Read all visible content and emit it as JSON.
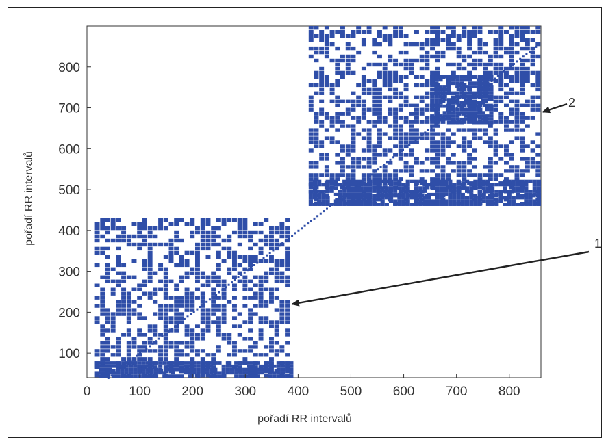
{
  "chart_data": {
    "type": "scatter",
    "title": "",
    "xlabel": "pořadí RR intervalů",
    "ylabel": "pořadí RR intervalů",
    "xlim": [
      0,
      860
    ],
    "ylim": [
      40,
      900
    ],
    "xticks": [
      0,
      100,
      200,
      300,
      400,
      500,
      600,
      700,
      800
    ],
    "yticks": [
      100,
      200,
      300,
      400,
      500,
      600,
      700,
      800
    ],
    "grid": false,
    "marker_color": "#2f4ea8",
    "blocks": [
      {
        "label": "1",
        "x_range": [
          15,
          385
        ],
        "y_range": [
          40,
          425
        ],
        "density": 0.6
      },
      {
        "label": "2",
        "x_range": [
          420,
          860
        ],
        "y_range": [
          460,
          900
        ],
        "density": 0.62
      }
    ],
    "dense_patches": [
      {
        "x_range": [
          650,
          770
        ],
        "y_range": [
          660,
          780
        ]
      },
      {
        "x_range": [
          420,
          860
        ],
        "y_range": [
          460,
          520
        ]
      },
      {
        "x_range": [
          15,
          385
        ],
        "y_range": [
          40,
          80
        ]
      }
    ],
    "annotations": [
      {
        "label": "1",
        "target": [
          385,
          220
        ]
      },
      {
        "label": "2",
        "target": [
          860,
          690
        ]
      }
    ]
  }
}
